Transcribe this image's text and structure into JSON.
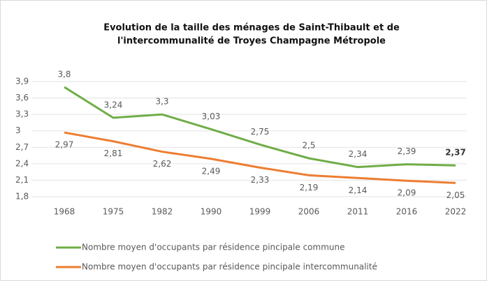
{
  "chart_data": {
    "type": "line",
    "title": [
      "Evolution de la taille des ménages de Saint-Thibault et de",
      "l'intercommunalité de Troyes Champagne Métropole"
    ],
    "categories": [
      "1968",
      "1975",
      "1982",
      "1990",
      "1999",
      "2006",
      "2011",
      "2016",
      "2022"
    ],
    "series": [
      {
        "name": "Nombre moyen d'occupants par résidence pincipale commune",
        "color": "#70ad47",
        "values": [
          3.8,
          3.24,
          3.3,
          3.03,
          2.75,
          2.5,
          2.34,
          2.39,
          2.37
        ],
        "value_labels": [
          "3,8",
          "3,24",
          "3,3",
          "3,03",
          "2,75",
          "2,5",
          "2,34",
          "2,39",
          "2,37"
        ]
      },
      {
        "name": "Nombre moyen d'occupants par résidence pincipale intercommunalité",
        "color": "#ed7d31",
        "values": [
          2.97,
          2.81,
          2.62,
          2.49,
          2.33,
          2.19,
          2.14,
          2.09,
          2.05
        ],
        "value_labels": [
          "2,97",
          "2,81",
          "2,62",
          "2,49",
          "2,33",
          "2,19",
          "2,14",
          "2,09",
          "2,05"
        ]
      }
    ],
    "ylim": [
      1.8,
      3.9
    ],
    "yticks": [
      {
        "value": 1.8,
        "label": "1,8"
      },
      {
        "value": 2.1,
        "label": "2,1"
      },
      {
        "value": 2.4,
        "label": "2,4"
      },
      {
        "value": 2.7,
        "label": "2,7"
      },
      3,
      {
        "value": 3.3,
        "label": "3,3"
      },
      {
        "value": 3.6,
        "label": "3,6"
      },
      {
        "value": 3.9,
        "label": "3,9"
      }
    ],
    "grid": true
  }
}
